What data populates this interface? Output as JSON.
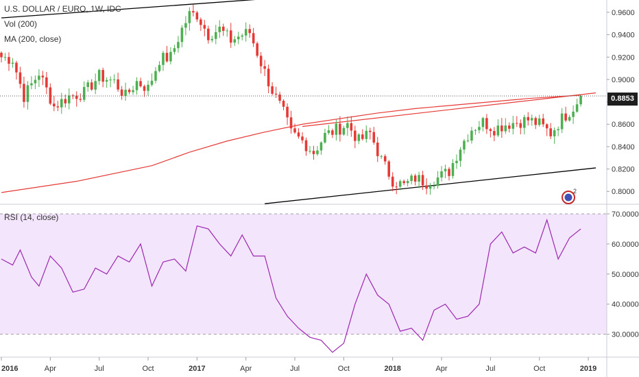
{
  "header": {
    "symbol": "U.S. DOLLAR / EURO, 1W, IDC",
    "vol_label": "Vol (200)",
    "ma_label": "MA (200, close)"
  },
  "rsi_panel": {
    "label": "RSI (14, close)"
  },
  "last_price": "0.8853",
  "colors": {
    "up": "#4caf50",
    "down": "#e53935",
    "ma": "#e53935",
    "rsi": "#9c27b0",
    "rsi_band": "#f3e5fb",
    "trendline": "#000000"
  },
  "chart_data": [
    {
      "type": "candlestick",
      "title": "U.S. DOLLAR / EURO, 1W, IDC",
      "y_ticks": [
        "0.9600",
        "0.9400",
        "0.9200",
        "0.9000",
        "0.8800",
        "0.8600",
        "0.8400",
        "0.8200",
        "0.8000"
      ],
      "ylim": [
        0.7885,
        0.971
      ],
      "x_ticks": [
        "2016",
        "Apr",
        "Jul",
        "Oct",
        "2017",
        "Apr",
        "Jul",
        "Oct",
        "2018",
        "Apr",
        "Jul",
        "Oct",
        "2019"
      ],
      "close_path": [
        [
          0,
          0.92
        ],
        [
          3,
          0.918
        ],
        [
          6,
          0.885
        ],
        [
          10,
          0.906
        ],
        [
          14,
          0.876
        ],
        [
          18,
          0.885
        ],
        [
          22,
          0.888
        ],
        [
          26,
          0.903
        ],
        [
          30,
          0.898
        ],
        [
          33,
          0.885
        ],
        [
          36,
          0.898
        ],
        [
          39,
          0.892
        ],
        [
          42,
          0.918
        ],
        [
          45,
          0.92
        ],
        [
          48,
          0.945
        ],
        [
          50,
          0.958
        ],
        [
          52,
          0.958
        ],
        [
          55,
          0.94
        ],
        [
          58,
          0.945
        ],
        [
          61,
          0.935
        ],
        [
          64,
          0.94
        ],
        [
          66,
          0.942
        ],
        [
          69,
          0.915
        ],
        [
          72,
          0.89
        ],
        [
          75,
          0.87
        ],
        [
          77,
          0.852
        ],
        [
          80,
          0.845
        ],
        [
          83,
          0.835
        ],
        [
          86,
          0.85
        ],
        [
          89,
          0.855
        ],
        [
          92,
          0.86
        ],
        [
          95,
          0.845
        ],
        [
          98,
          0.852
        ],
        [
          101,
          0.828
        ],
        [
          104,
          0.81
        ],
        [
          107,
          0.805
        ],
        [
          110,
          0.812
        ],
        [
          113,
          0.808
        ],
        [
          116,
          0.812
        ],
        [
          119,
          0.818
        ],
        [
          122,
          0.84
        ],
        [
          125,
          0.856
        ],
        [
          128,
          0.862
        ],
        [
          131,
          0.856
        ],
        [
          134,
          0.86
        ],
        [
          137,
          0.862
        ],
        [
          140,
          0.864
        ],
        [
          143,
          0.86
        ],
        [
          146,
          0.852
        ],
        [
          149,
          0.865
        ],
        [
          152,
          0.875
        ],
        [
          154,
          0.8853
        ]
      ],
      "ma_200": [
        [
          0,
          0.799
        ],
        [
          20,
          0.809
        ],
        [
          40,
          0.823
        ],
        [
          50,
          0.835
        ],
        [
          60,
          0.845
        ],
        [
          70,
          0.853
        ],
        [
          80,
          0.86
        ],
        [
          90,
          0.865
        ],
        [
          100,
          0.87
        ],
        [
          110,
          0.874
        ],
        [
          120,
          0.877
        ],
        [
          130,
          0.88
        ],
        [
          140,
          0.883
        ],
        [
          154,
          0.886
        ]
      ],
      "trendline_upper": [
        [
          0,
          0.955
        ],
        [
          70,
          0.972
        ]
      ],
      "trendline_lower": [
        [
          70,
          0.789
        ],
        [
          158,
          0.821
        ]
      ],
      "channel_upper_red": [
        [
          80,
          0.858
        ],
        [
          158,
          0.888
        ]
      ],
      "last_price": 0.8853
    },
    {
      "type": "line",
      "title": "RSI (14, close)",
      "y_ticks": [
        "70.0000",
        "60.0000",
        "50.0000",
        "40.0000",
        "30.0000"
      ],
      "ylim": [
        22.4,
        70.0
      ],
      "band": [
        30,
        70
      ],
      "x": [
        0,
        3,
        5,
        8,
        10,
        13,
        16,
        19,
        22,
        25,
        28,
        31,
        34,
        37,
        40,
        43,
        46,
        49,
        52,
        55,
        58,
        61,
        64,
        67,
        70,
        73,
        76,
        79,
        82,
        85,
        88,
        91,
        94,
        97,
        100,
        103,
        106,
        109,
        112,
        115,
        118,
        121,
        124,
        127,
        130,
        133,
        136,
        139,
        142,
        145,
        148,
        151,
        154
      ],
      "values": [
        55,
        53,
        58,
        49,
        46,
        56,
        52,
        44,
        45,
        52,
        50,
        56,
        54,
        60,
        46,
        54,
        55,
        51,
        66,
        65,
        60,
        56,
        63,
        56,
        56,
        42,
        36,
        32,
        29,
        28,
        24,
        27,
        40,
        50,
        43,
        40,
        31,
        32,
        28,
        38,
        40,
        35,
        36,
        40,
        60,
        64,
        57,
        59,
        57,
        68,
        55,
        62,
        65
      ]
    }
  ]
}
